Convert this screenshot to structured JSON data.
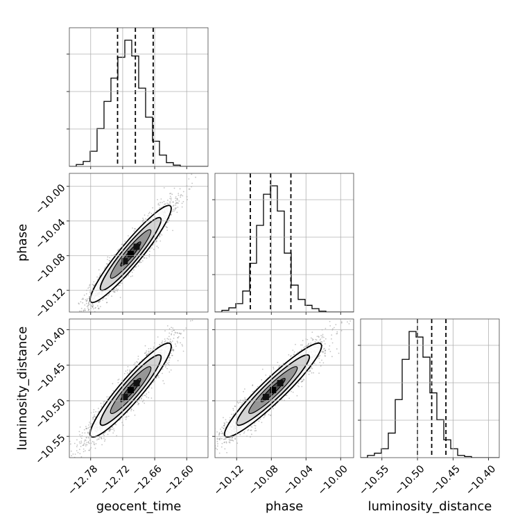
{
  "chart_data": {
    "type": "corner",
    "parameters": [
      "geocent_time",
      "phase",
      "luminosity_distance"
    ],
    "axes": {
      "geocent_time": {
        "range": [
          -12.82,
          -12.56
        ],
        "ticks": [
          -12.78,
          -12.72,
          -12.66,
          -12.6
        ],
        "tick_labels": [
          "−12.78",
          "−12.72",
          "−12.66",
          "−12.60"
        ]
      },
      "phase": {
        "range": [
          -10.145,
          -9.985
        ],
        "ticks": [
          -10.12,
          -10.08,
          -10.04,
          -10.0
        ],
        "tick_labels": [
          "−10.12",
          "−10.08",
          "−10.04",
          "−10.00"
        ]
      },
      "luminosity_distance": {
        "range": [
          -10.58,
          -10.385
        ],
        "ticks": [
          -10.55,
          -10.5,
          -10.45,
          -10.4
        ],
        "tick_labels": [
          "−10.55",
          "−10.50",
          "−10.45",
          "−10.40"
        ]
      }
    },
    "histograms": {
      "geocent_time": {
        "bin_edges": [
          -12.82,
          -12.807,
          -12.794,
          -12.781,
          -12.768,
          -12.755,
          -12.742,
          -12.729,
          -12.716,
          -12.703,
          -12.69,
          -12.677,
          -12.664,
          -12.651,
          -12.638,
          -12.625,
          -12.612,
          -12.599,
          -12.586,
          -12.573,
          -12.56
        ],
        "counts": [
          0,
          3,
          8,
          24,
          60,
          103,
          140,
          173,
          200,
          175,
          124,
          78,
          40,
          18,
          6,
          2,
          0,
          0,
          0,
          0
        ],
        "quantiles": [
          -12.7296,
          -12.6962,
          -12.6628
        ]
      },
      "phase": {
        "bin_edges": [
          -10.145,
          -10.137,
          -10.129,
          -10.121,
          -10.113,
          -10.105,
          -10.097,
          -10.089,
          -10.081,
          -10.073,
          -10.065,
          -10.057,
          -10.049,
          -10.041,
          -10.033,
          -10.025,
          -10.017,
          -10.009,
          -10.001,
          -9.993,
          -9.985
        ],
        "counts": [
          0,
          2,
          5,
          10,
          25,
          58,
          103,
          140,
          150,
          120,
          70,
          32,
          15,
          8,
          4,
          1,
          0,
          0,
          0,
          0
        ],
        "quantiles": [
          -10.1042,
          -10.0808,
          -10.0574
        ]
      },
      "luminosity_distance": {
        "bin_edges": [
          -10.58,
          -10.57025,
          -10.5605,
          -10.55075,
          -10.541,
          -10.53125,
          -10.5215,
          -10.51175,
          -10.502,
          -10.49225,
          -10.4825,
          -10.47275,
          -10.463,
          -10.45325,
          -10.4435,
          -10.43375,
          -10.424,
          -10.41425,
          -10.4045,
          -10.39475,
          -10.385
        ],
        "counts": [
          0,
          2,
          4,
          8,
          22,
          52,
          88,
          113,
          108,
          90,
          58,
          34,
          16,
          8,
          2,
          1,
          0,
          0,
          0,
          0
        ],
        "quantiles": [
          -10.5,
          -10.48,
          -10.46
        ]
      }
    },
    "pairs": [
      {
        "x": "geocent_time",
        "y": "phase",
        "mean": [
          -12.705,
          -10.078
        ],
        "sigma": [
          0.038,
          0.028
        ],
        "correlation": 0.94
      },
      {
        "x": "geocent_time",
        "y": "luminosity_distance",
        "mean": [
          -12.705,
          -10.485
        ],
        "sigma": [
          0.038,
          0.033
        ],
        "correlation": 0.93
      },
      {
        "x": "phase",
        "y": "luminosity_distance",
        "mean": [
          -10.078,
          -10.485
        ],
        "sigma": [
          0.028,
          0.033
        ],
        "correlation": 0.94
      }
    ],
    "scatter_points_per_panel": 2600,
    "contour_levels_sigma": [
      0.5,
      1.0,
      1.5,
      2.0
    ],
    "grid": true,
    "xlabels": [
      "geocent_time",
      "phase",
      "luminosity_distance"
    ],
    "ylabels": [
      "",
      "phase",
      "luminosity_distance"
    ]
  }
}
